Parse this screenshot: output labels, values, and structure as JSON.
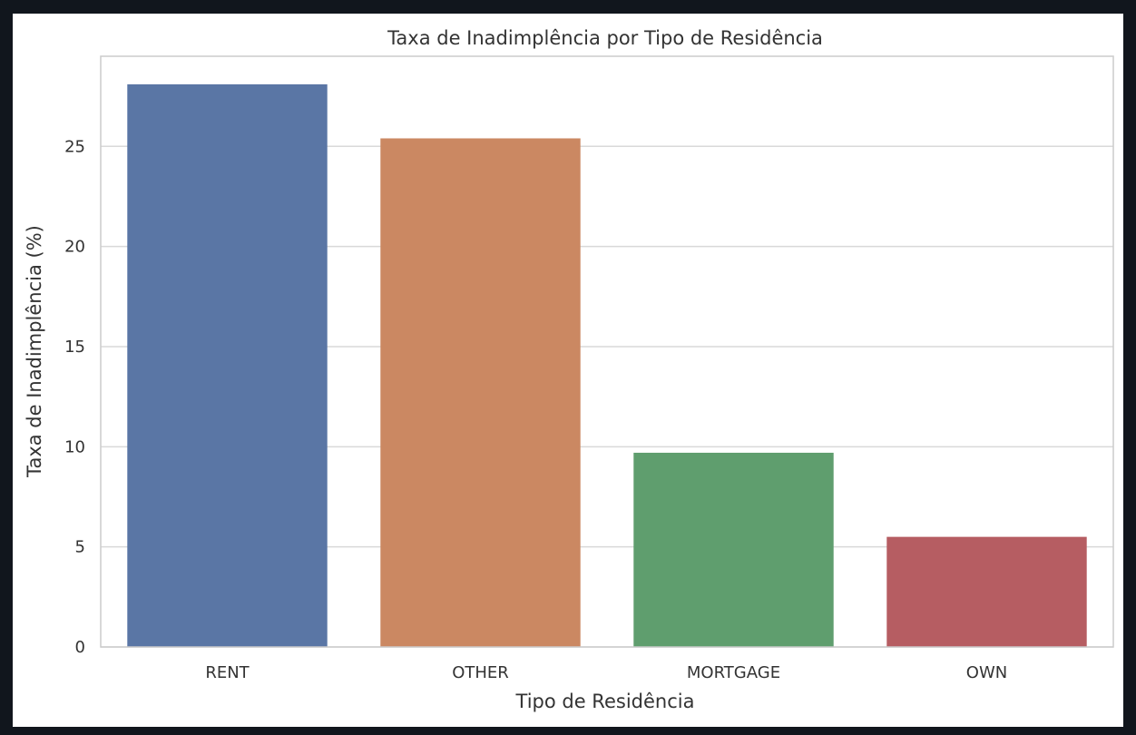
{
  "chart_data": {
    "type": "bar",
    "title": "Taxa de Inadimplência por Tipo de Residência",
    "xlabel": "Tipo de Residência",
    "ylabel": "Taxa de Inadimplência (%)",
    "categories": [
      "RENT",
      "OTHER",
      "MORTGAGE",
      "OWN"
    ],
    "values": [
      28.1,
      25.4,
      9.7,
      5.5
    ],
    "colors": [
      "#5a76a5",
      "#cb8862",
      "#5f9e6e",
      "#b65d62"
    ],
    "ylim": [
      0,
      29.5
    ],
    "yticks": [
      0,
      5,
      10,
      15,
      20,
      25
    ],
    "grid": true,
    "legend": "none"
  }
}
